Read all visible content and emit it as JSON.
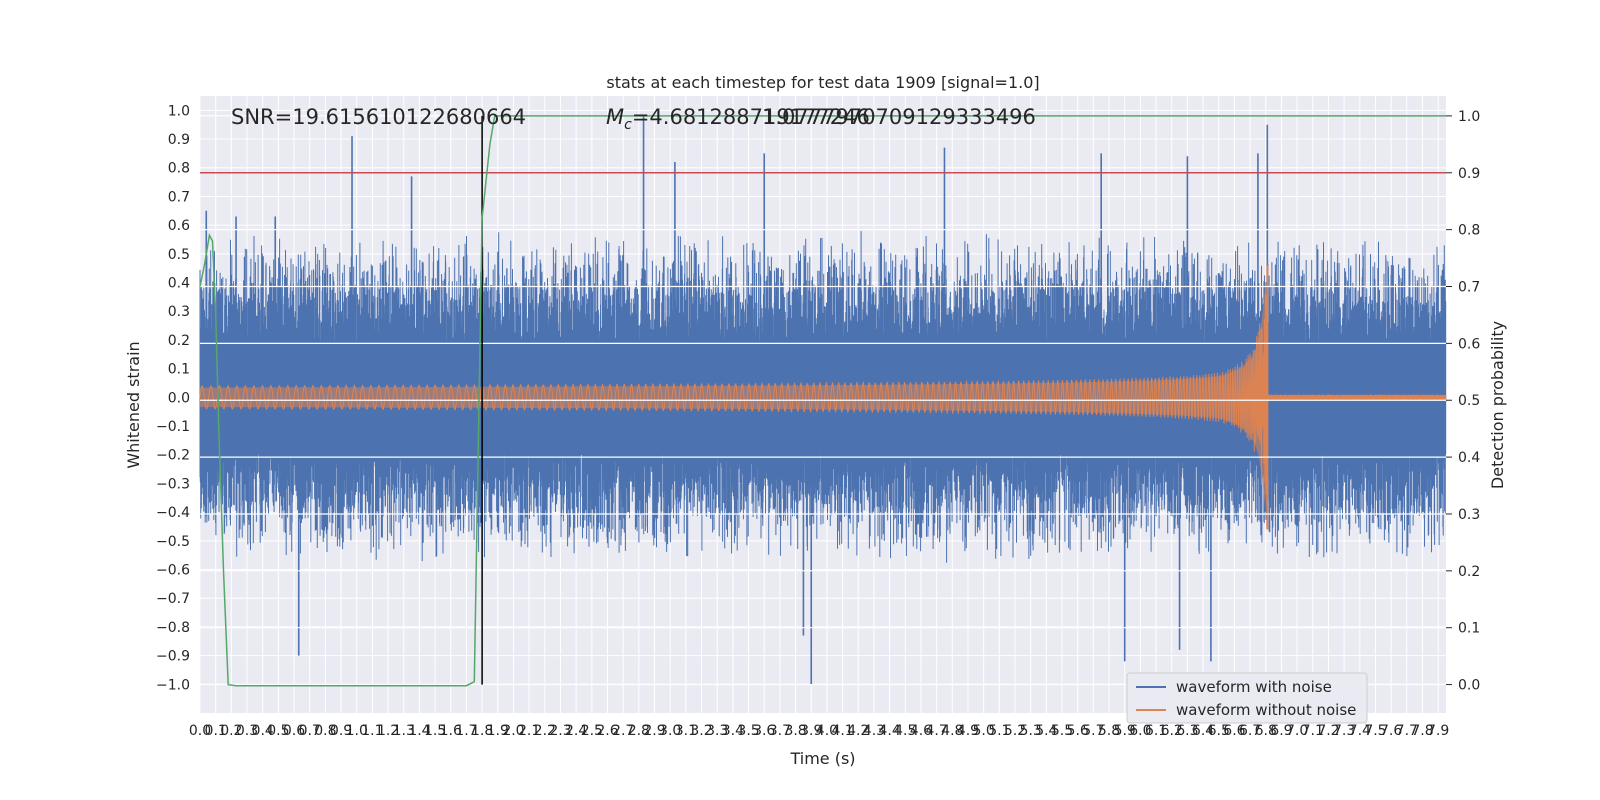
{
  "chart_data": {
    "type": "line",
    "title": "stats at each timestep for test data 1909 [signal=1.0]",
    "xlabel": "Time (s)",
    "ylabel": "Whitened strain",
    "y2label": "Detection probability",
    "xlim": [
      0.0,
      7.95
    ],
    "ylim": [
      -1.1,
      1.05
    ],
    "y2lim": [
      -0.05,
      1.035
    ],
    "x_ticks": [
      0.0,
      0.1,
      0.2,
      0.3,
      0.4,
      0.5,
      0.6,
      0.7,
      0.8,
      0.9,
      1.0,
      1.1,
      1.2,
      1.3,
      1.4,
      1.5,
      1.6,
      1.7,
      1.8,
      1.9,
      2.0,
      2.1,
      2.2,
      2.3,
      2.4,
      2.5,
      2.6,
      2.7,
      2.8,
      2.9,
      3.0,
      3.1,
      3.2,
      3.3,
      3.4,
      3.5,
      3.6,
      3.7,
      3.8,
      3.9,
      4.0,
      4.1,
      4.2,
      4.3,
      4.4,
      4.5,
      4.6,
      4.7,
      4.8,
      4.9,
      5.0,
      5.1,
      5.2,
      5.3,
      5.4,
      5.5,
      5.6,
      5.7,
      5.8,
      5.9,
      6.0,
      6.1,
      6.2,
      6.3,
      6.4,
      6.5,
      6.6,
      6.7,
      6.8,
      6.9,
      7.0,
      7.1,
      7.2,
      7.3,
      7.4,
      7.5,
      7.6,
      7.7,
      7.8,
      7.9
    ],
    "x_tick_labels": [
      "0.0",
      "0.1",
      "0.2",
      "0.3",
      "0.4",
      "0.5",
      "0.6",
      "0.7",
      "0.8",
      "0.9",
      "1.0",
      "1.1",
      "1.2",
      "1.3",
      "1.4",
      "1.5",
      "1.6",
      "1.7",
      "1.8",
      "1.9",
      "2.0",
      "2.1",
      "2.2",
      "2.3",
      "2.4",
      "2.5",
      "2.6",
      "2.7",
      "2.8",
      "2.9",
      "3.0",
      "3.1",
      "3.2",
      "3.3",
      "3.4",
      "3.5",
      "3.6",
      "3.7",
      "3.8",
      "3.9",
      "4.0",
      "4.1",
      "4.2",
      "4.3",
      "4.4",
      "4.5",
      "4.6",
      "4.7",
      "4.8",
      "4.9",
      "5.0",
      "5.1",
      "5.2",
      "5.3",
      "5.4",
      "5.5",
      "5.6",
      "5.7",
      "5.8",
      "5.9",
      "6.0",
      "6.1",
      "6.2",
      "6.3",
      "6.4",
      "6.5",
      "6.6",
      "6.7",
      "6.8",
      "6.9",
      "7.0",
      "7.1",
      "7.2",
      "7.3",
      "7.4",
      "7.5",
      "7.6",
      "7.7",
      "7.8",
      "7.9"
    ],
    "y_ticks": [
      1.0,
      0.9,
      0.8,
      0.7,
      0.6,
      0.5,
      0.4,
      0.3,
      0.2,
      0.1,
      0.0,
      -0.1,
      -0.2,
      -0.3,
      -0.4,
      -0.5,
      -0.6,
      -0.7,
      -0.8,
      -0.9,
      -1.0
    ],
    "y_tick_labels": [
      "1.0",
      "0.9",
      "0.8",
      "0.7",
      "0.6",
      "0.5",
      "0.4",
      "0.3",
      "0.2",
      "0.1",
      "0.0",
      "−0.1",
      "−0.2",
      "−0.3",
      "−0.4",
      "−0.5",
      "−0.6",
      "−0.7",
      "−0.8",
      "−0.9",
      "−1.0"
    ],
    "y2_ticks": [
      1.0,
      0.9,
      0.8,
      0.7,
      0.6,
      0.5,
      0.4,
      0.3,
      0.2,
      0.1,
      0.0
    ],
    "y2_tick_labels": [
      "1.0",
      "0.9",
      "0.8",
      "0.7",
      "0.6",
      "0.5",
      "0.4",
      "0.3",
      "0.2",
      "0.1",
      "0.0"
    ],
    "annotations": {
      "snr": "SNR=19.615610122680664",
      "mc_symbol": "M",
      "mc_sub": "c",
      "mc_value": "=4.681288719177246",
      "mc_overlap": "1.0777970709129333496"
    },
    "threshold": {
      "value": 0.9,
      "color": "#c44e52"
    },
    "detection_time": {
      "value": 1.8,
      "color": "#000000"
    },
    "series": [
      {
        "name": "waveform with noise",
        "color": "#4c72b0",
        "envelope_description": "noisy whitened strain, spans roughly -1.0 to 1.0",
        "typical_upper": 0.45,
        "typical_lower": -0.45,
        "peaks_upper": [
          [
            0.04,
            0.65
          ],
          [
            0.23,
            0.63
          ],
          [
            0.48,
            0.63
          ],
          [
            0.97,
            0.91
          ],
          [
            1.35,
            0.77
          ],
          [
            2.83,
            0.98
          ],
          [
            3.03,
            0.82
          ],
          [
            3.6,
            0.85
          ],
          [
            4.75,
            0.87
          ],
          [
            5.75,
            0.85
          ],
          [
            6.3,
            0.84
          ],
          [
            6.75,
            0.85
          ],
          [
            6.81,
            0.95
          ]
        ],
        "peaks_lower": [
          [
            0.63,
            -0.9
          ],
          [
            3.9,
            -1.0
          ],
          [
            5.9,
            -0.92
          ],
          [
            6.45,
            -0.92
          ],
          [
            6.25,
            -0.88
          ],
          [
            3.85,
            -0.83
          ]
        ]
      },
      {
        "name": "waveform without noise",
        "color": "#dd8452",
        "envelope_description": "chirp signal, amplitude ~0.04 growing to ~0.45 at merger near 6.81 s, then ringdown to ~0.01",
        "amplitude_start": 0.04,
        "merger_time": 6.81,
        "peak_upper": 0.46,
        "peak_lower": -0.46,
        "post_merger_amplitude": 0.01
      },
      {
        "name": "detection probability",
        "color": "#55a868",
        "axis": "right",
        "points": [
          [
            0.0,
            0.7
          ],
          [
            0.03,
            0.74
          ],
          [
            0.06,
            0.79
          ],
          [
            0.08,
            0.78
          ],
          [
            0.1,
            0.65
          ],
          [
            0.12,
            0.45
          ],
          [
            0.15,
            0.2
          ],
          [
            0.18,
            0.0
          ],
          [
            0.23,
            -0.002
          ],
          [
            1.5,
            -0.002
          ],
          [
            1.7,
            -0.002
          ],
          [
            1.75,
            0.005
          ],
          [
            1.8,
            0.82
          ],
          [
            1.85,
            0.95
          ],
          [
            1.88,
            1.0
          ],
          [
            7.95,
            1.0
          ]
        ]
      }
    ],
    "legend": {
      "placement": "lower-right",
      "entries": [
        {
          "label": "waveform with noise",
          "color": "#4c72b0"
        },
        {
          "label": "waveform without noise",
          "color": "#dd8452"
        }
      ]
    }
  }
}
